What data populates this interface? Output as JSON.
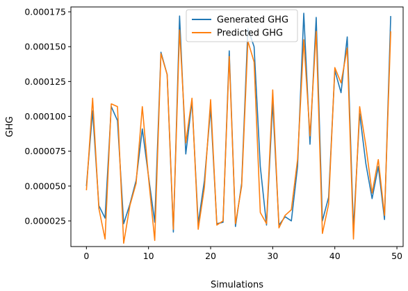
{
  "chart_data": {
    "type": "line",
    "title": "",
    "xlabel": "Simulations",
    "ylabel": "GHG",
    "xlim": [
      -2.5,
      51
    ],
    "ylim": [
      6.6e-06,
      0.0001785
    ],
    "xticks": [
      0,
      10,
      20,
      30,
      40,
      50
    ],
    "xtick_labels": [
      "0",
      "10",
      "20",
      "30",
      "40",
      "50"
    ],
    "yticks": [
      2.5e-05,
      5e-05,
      7.5e-05,
      0.0001,
      0.000125,
      0.00015,
      0.000175
    ],
    "ytick_labels": [
      "0.000025",
      "0.000050",
      "0.000075",
      "0.000100",
      "0.000125",
      "0.000150",
      "0.000175"
    ],
    "grid": false,
    "legend_position": "top-center",
    "x": [
      0,
      1,
      2,
      3,
      4,
      5,
      6,
      7,
      8,
      9,
      10,
      11,
      12,
      13,
      14,
      15,
      16,
      17,
      18,
      19,
      20,
      21,
      22,
      23,
      24,
      25,
      26,
      27,
      28,
      29,
      30,
      31,
      32,
      33,
      34,
      35,
      36,
      37,
      38,
      39,
      40,
      41,
      42,
      43,
      44,
      45,
      46,
      47,
      48,
      49
    ],
    "series": [
      {
        "name": "Generated GHG",
        "color": "#1f77b4",
        "values": [
          5e-05,
          0.000104,
          3.6e-05,
          2.7e-05,
          0.000107,
          9.7e-05,
          2.3e-05,
          3.7e-05,
          5.4e-05,
          9.1e-05,
          5.7e-05,
          2.4e-05,
          0.000146,
          0.00013,
          1.7e-05,
          0.000172,
          7.3e-05,
          0.000111,
          2.3e-05,
          5.4e-05,
          0.000106,
          2.3e-05,
          2.4e-05,
          0.000147,
          2.1e-05,
          5.2e-05,
          0.000163,
          0.00015,
          6.4e-05,
          2.2e-05,
          0.00011,
          2.2e-05,
          2.8e-05,
          2.5e-05,
          6.4e-05,
          0.000174,
          8e-05,
          0.000171,
          2.5e-05,
          4.2e-05,
          0.000133,
          0.000117,
          0.000157,
          1.9e-05,
          0.000102,
          6.6e-05,
          4.1e-05,
          6.4e-05,
          2.6e-05,
          0.000172
        ]
      },
      {
        "name": "Predicted GHG",
        "color": "#ff7f0e",
        "values": [
          4.7e-05,
          0.000113,
          3.4e-05,
          1.2e-05,
          0.000109,
          0.000107,
          9e-06,
          3.6e-05,
          5.2e-05,
          0.000107,
          5.6e-05,
          1.1e-05,
          0.000145,
          0.00013,
          1.9e-05,
          0.000162,
          8.1e-05,
          0.000113,
          1.9e-05,
          4.9e-05,
          0.000112,
          2.2e-05,
          2.5e-05,
          0.000143,
          2.3e-05,
          5e-05,
          0.000154,
          0.000139,
          3.1e-05,
          2.3e-05,
          0.000119,
          2e-05,
          2.9e-05,
          3.3e-05,
          6.9e-05,
          0.000155,
          8.6e-05,
          0.000161,
          1.6e-05,
          3.7e-05,
          0.000135,
          0.000124,
          0.000149,
          1.2e-05,
          0.000107,
          7.9e-05,
          4.5e-05,
          6.9e-05,
          2.9e-05,
          0.000161
        ]
      }
    ]
  }
}
